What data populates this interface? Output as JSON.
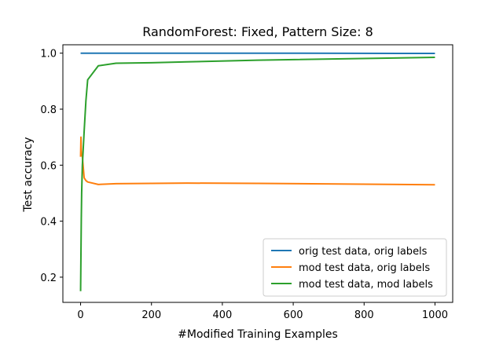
{
  "chart_data": {
    "type": "line",
    "title": "RandomForest: Fixed, Pattern Size: 8",
    "xlabel": "#Modified Training Examples",
    "ylabel": "Test accuracy",
    "xlim": [
      -50,
      1050
    ],
    "ylim": [
      0.11,
      1.03
    ],
    "xticks": [
      0,
      200,
      400,
      600,
      800,
      1000
    ],
    "xtick_labels": [
      "0",
      "200",
      "400",
      "600",
      "800",
      "1000"
    ],
    "yticks": [
      0.2,
      0.4,
      0.6,
      0.8,
      1.0
    ],
    "ytick_labels": [
      "0.2",
      "0.4",
      "0.6",
      "0.8",
      "1.0"
    ],
    "grid": false,
    "legend_position": "lower-right",
    "series": [
      {
        "name": "orig test data, orig labels",
        "color": "#1f77b4",
        "x": [
          0,
          1,
          2,
          3,
          5,
          10,
          15,
          20,
          50,
          100,
          200,
          300,
          500,
          1000
        ],
        "y": [
          1.0,
          1.0,
          1.0,
          1.0,
          1.0,
          1.0,
          1.0,
          1.0,
          1.0,
          1.0,
          1.0,
          1.0,
          1.0,
          0.999
        ]
      },
      {
        "name": "mod test data, orig labels",
        "color": "#ff7f0e",
        "x": [
          0,
          1,
          2,
          3,
          5,
          10,
          15,
          20,
          50,
          100,
          200,
          300,
          500,
          1000
        ],
        "y": [
          0.63,
          0.7,
          0.65,
          0.64,
          0.63,
          0.555,
          0.545,
          0.54,
          0.531,
          0.534,
          0.535,
          0.536,
          0.535,
          0.53
        ]
      },
      {
        "name": "mod test data, mod labels",
        "color": "#2ca02c",
        "x": [
          0,
          1,
          2,
          3,
          5,
          10,
          15,
          20,
          50,
          100,
          200,
          300,
          500,
          1000
        ],
        "y": [
          0.15,
          0.28,
          0.41,
          0.5,
          0.6,
          0.72,
          0.83,
          0.905,
          0.955,
          0.964,
          0.966,
          0.969,
          0.975,
          0.985
        ]
      }
    ]
  }
}
